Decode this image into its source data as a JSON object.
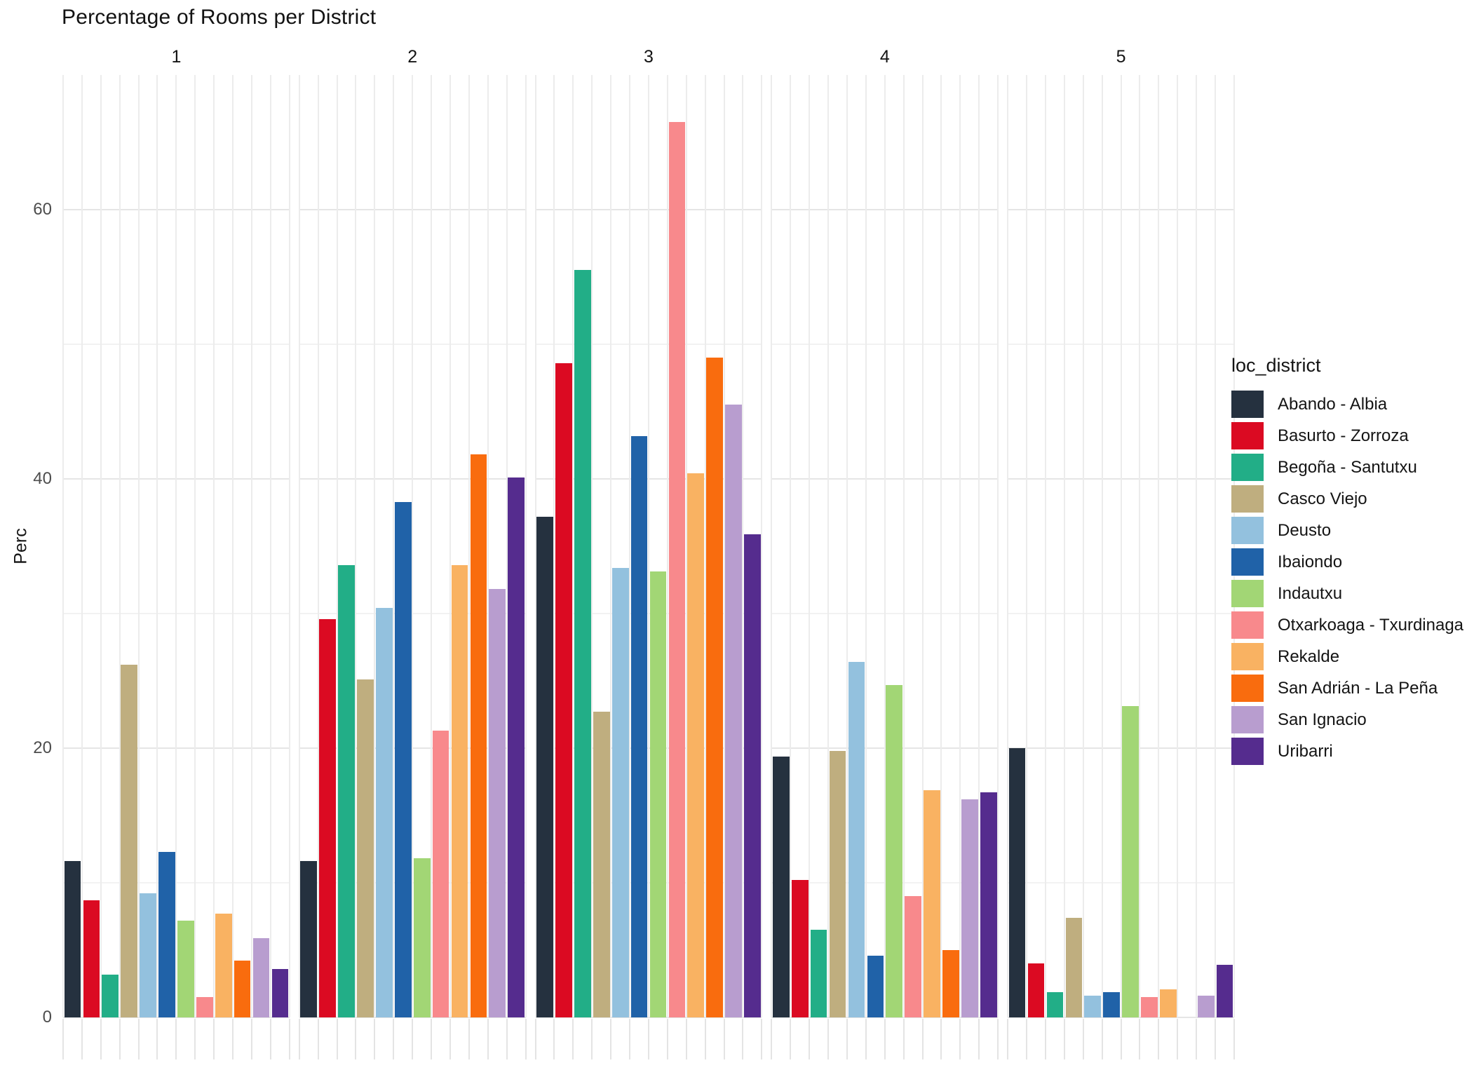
{
  "chart_data": {
    "type": "bar",
    "title": "Percentage of Rooms per District",
    "ylabel": "Perc",
    "xlabel": "",
    "legend_title": "loc_district",
    "legend_position": "right",
    "facets": [
      "1",
      "2",
      "3",
      "4",
      "5"
    ],
    "yticks": [
      "0",
      "20",
      "40",
      "60"
    ],
    "ytick_values": [
      0,
      20,
      40,
      60
    ],
    "grid_major": [
      0,
      20,
      40,
      60
    ],
    "grid_minor": [
      10,
      30,
      50
    ],
    "ylim": [
      0,
      70
    ],
    "grid": "on",
    "series": [
      {
        "name": "Abando - Albia",
        "color": "#25313F",
        "values": [
          11.6,
          11.6,
          37.2,
          19.4,
          20.0
        ]
      },
      {
        "name": "Basurto - Zorroza",
        "color": "#DB0A22",
        "values": [
          8.7,
          29.6,
          48.6,
          10.2,
          4.0
        ]
      },
      {
        "name": "Begoña - Santutxu",
        "color": "#22AE87",
        "values": [
          3.2,
          33.6,
          55.5,
          6.5,
          1.9
        ]
      },
      {
        "name": "Casco Viejo",
        "color": "#BFAE7F",
        "values": [
          26.2,
          25.1,
          22.7,
          19.8,
          7.4
        ]
      },
      {
        "name": "Deusto",
        "color": "#93C1DE",
        "values": [
          9.2,
          30.4,
          33.4,
          26.4,
          1.6
        ]
      },
      {
        "name": "Ibaiondo",
        "color": "#2062A8",
        "values": [
          12.3,
          38.3,
          43.2,
          4.6,
          1.9
        ]
      },
      {
        "name": "Indautxu",
        "color": "#A2D675",
        "values": [
          7.2,
          11.8,
          33.1,
          24.7,
          23.1
        ]
      },
      {
        "name": "Otxarkoaga - Txurdinaga",
        "color": "#F8898C",
        "values": [
          1.5,
          21.3,
          66.5,
          9.0,
          1.5
        ]
      },
      {
        "name": "Rekalde",
        "color": "#F9B262",
        "values": [
          7.7,
          33.6,
          40.4,
          16.9,
          2.1
        ]
      },
      {
        "name": "San Adrián - La Peña",
        "color": "#F96C0E",
        "values": [
          4.2,
          41.8,
          49.0,
          5.0,
          0
        ]
      },
      {
        "name": "San Ignacio",
        "color": "#B89DCF",
        "values": [
          5.9,
          31.8,
          45.5,
          16.2,
          1.6
        ]
      },
      {
        "name": "Uribarri",
        "color": "#552C8E",
        "values": [
          3.6,
          40.1,
          35.9,
          16.7,
          3.9
        ]
      }
    ]
  }
}
